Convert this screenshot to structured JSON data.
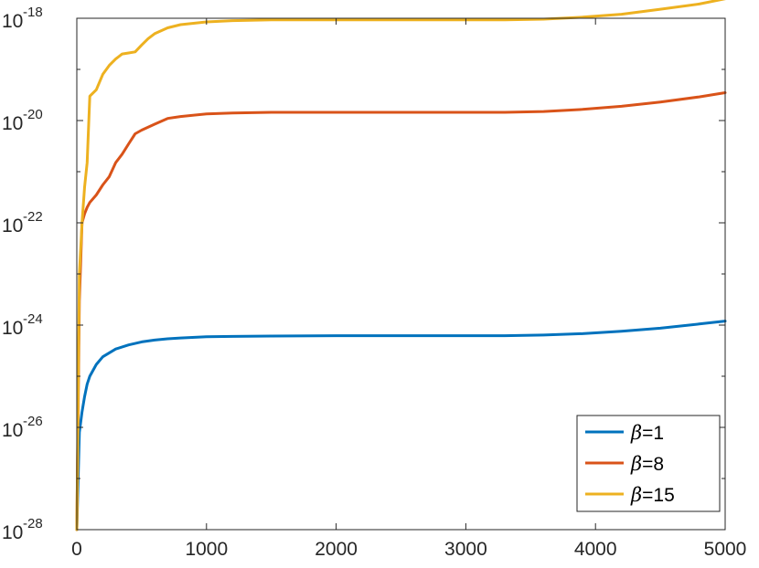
{
  "chart_data": {
    "type": "line",
    "title": "",
    "xlabel": "",
    "ylabel": "",
    "xlim": [
      0,
      5000
    ],
    "ylim": [
      1e-28,
      1e-18
    ],
    "y_scale": "log",
    "grid": false,
    "legend_position": "bottom-right",
    "x_ticks": [
      0,
      1000,
      2000,
      3000,
      4000,
      5000
    ],
    "x_tick_labels": [
      "0",
      "1000",
      "2000",
      "3000",
      "4000",
      "5000"
    ],
    "y_ticks": [
      -28,
      -26,
      -24,
      -22,
      -20,
      -18
    ],
    "y_tick_base": "10",
    "y_tick_exponents": [
      "-28",
      "-26",
      "-24",
      "-22",
      "-20",
      "-18"
    ],
    "series": [
      {
        "name": "β=1",
        "legend_symbol": "β",
        "legend_value": "=1",
        "color": "#0072BD",
        "x": [
          0,
          20,
          40,
          60,
          80,
          100,
          150,
          200,
          300,
          400,
          500,
          600,
          700,
          800,
          1000,
          1200,
          1500,
          2000,
          2500,
          3000,
          3300,
          3600,
          3900,
          4200,
          4500,
          4800,
          5000
        ],
        "y": [
          1e-28,
          8e-27,
          2e-26,
          4e-26,
          7e-26,
          1e-25,
          1.7e-25,
          2.4e-25,
          3.4e-25,
          4.1e-25,
          4.7e-25,
          5.1e-25,
          5.4e-25,
          5.6e-25,
          5.9e-25,
          6e-25,
          6.1e-25,
          6.2e-25,
          6.2e-25,
          6.2e-25,
          6.2e-25,
          6.4e-25,
          6.8e-25,
          7.6e-25,
          8.7e-25,
          1.05e-24,
          1.2e-24
        ]
      },
      {
        "name": "β=8",
        "legend_symbol": "β",
        "legend_value": "=8",
        "color": "#D95319",
        "x": [
          0,
          20,
          40,
          60,
          80,
          100,
          150,
          200,
          250,
          300,
          350,
          400,
          450,
          500,
          600,
          700,
          800,
          1000,
          1200,
          1500,
          2000,
          2500,
          3000,
          3300,
          3600,
          3900,
          4200,
          4500,
          4800,
          5000
        ],
        "y": [
          1e-28,
          3e-24,
          1e-22,
          1.5e-22,
          2e-22,
          2.5e-22,
          3.5e-22,
          5.5e-22,
          8e-22,
          1.5e-21,
          2.2e-21,
          3.5e-21,
          5.5e-21,
          6.5e-21,
          8.5e-21,
          1.1e-20,
          1.2e-20,
          1.35e-20,
          1.4e-20,
          1.45e-20,
          1.45e-20,
          1.45e-20,
          1.45e-20,
          1.45e-20,
          1.5e-20,
          1.65e-20,
          1.9e-20,
          2.3e-20,
          2.9e-20,
          3.5e-20
        ]
      },
      {
        "name": "β=15",
        "legend_symbol": "β",
        "legend_value": "=15",
        "color": "#EDB120",
        "x": [
          0,
          20,
          40,
          60,
          80,
          100,
          150,
          200,
          250,
          300,
          350,
          400,
          450,
          500,
          550,
          600,
          700,
          800,
          1000,
          1200,
          1500,
          2000,
          2500,
          3000,
          3300,
          3600,
          3900,
          4200,
          4500,
          4800,
          5000
        ],
        "y": [
          1e-28,
          1e-23,
          1e-22,
          5e-22,
          1.5e-21,
          3e-20,
          4e-20,
          8e-20,
          1.2e-19,
          1.6e-19,
          2e-19,
          2.1e-19,
          2.2e-19,
          3e-19,
          4e-19,
          5e-19,
          6.5e-19,
          7.5e-19,
          8.5e-19,
          9e-19,
          9.3e-19,
          9.3e-19,
          9.3e-19,
          9.3e-19,
          9.3e-19,
          9.6e-19,
          1.05e-18,
          1.2e-18,
          1.5e-18,
          1.9e-18,
          2.4e-18
        ]
      }
    ]
  }
}
